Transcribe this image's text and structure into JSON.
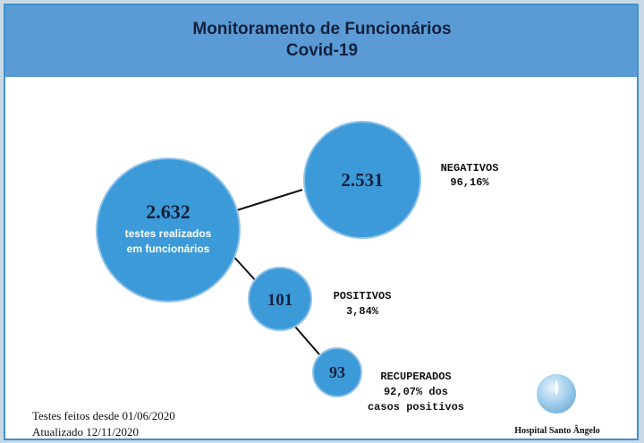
{
  "header": {
    "title": "Monitoramento de Funcionários",
    "subtitle": "Covid-19"
  },
  "nodes": [
    {
      "value": "2.632",
      "label_lines": [
        "testes realizados",
        "em funcionários"
      ]
    },
    {
      "value": "2.531",
      "caption_lines": [
        "NEGATIVOS",
        "96,16%"
      ]
    },
    {
      "value": "101",
      "caption_lines": [
        "POSITIVOS",
        "3,84%"
      ]
    },
    {
      "value": "93",
      "caption_lines": [
        "RECUPERADOS",
        "92,07% dos",
        "casos positivos"
      ]
    }
  ],
  "footer": {
    "lines": [
      "Testes feitos desde 01/06/2020",
      "Atualizado 12/11/2020"
    ],
    "logo": "Hospital Santo Ângelo"
  }
}
